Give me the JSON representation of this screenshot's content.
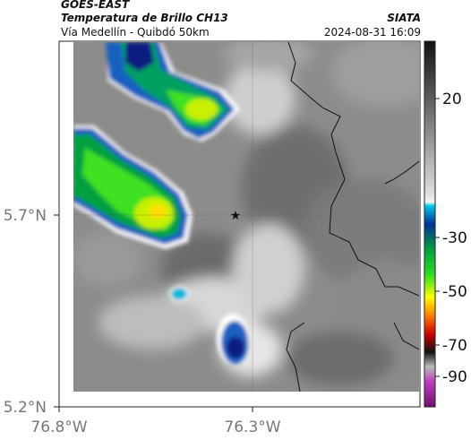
{
  "header": {
    "satellite": "GOES-EAST",
    "product": "Temperatura de Brillo CH13",
    "route": "Vía Medellín - Quibdó 50km",
    "organization": "SIATA",
    "timestamp": "2024-08-31 16:09"
  },
  "axes": {
    "lat_ticks": [
      "5.7°N",
      "5.2°N"
    ],
    "lon_ticks": [
      "76.8°W",
      "76.3°W"
    ]
  },
  "colorbar": {
    "ticks": [
      "20",
      "-30",
      "-50",
      "-70",
      "-90"
    ]
  },
  "marker": {
    "icon": "star-icon"
  }
}
